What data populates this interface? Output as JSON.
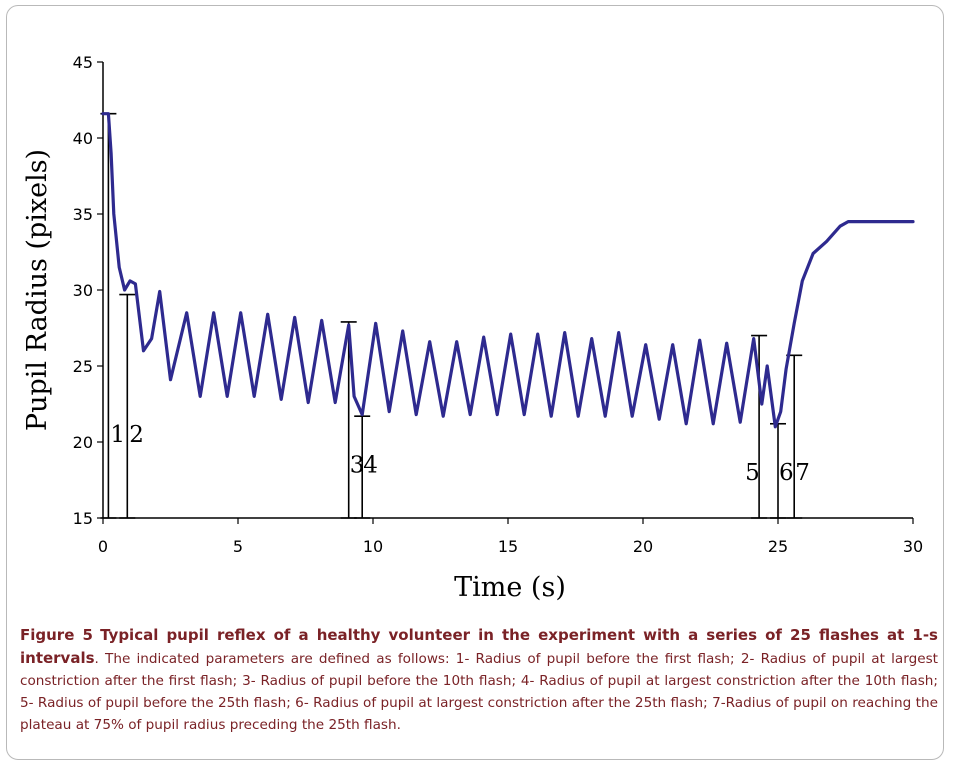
{
  "caption": {
    "figure_label": "Figure 5",
    "title": "Typical pupil reflex of a healthy volunteer in the experiment with a series of 25 flashes at 1-s intervals",
    "body": ". The indicated parameters are defined as follows: 1- Radius of pupil before the first flash; 2- Radius of pupil at largest constriction after the first flash; 3- Radius of pupil before the 10th flash; 4- Radius of pupil at largest constriction after the 10th flash; 5- Radius of pupil before the 25th flash; 6- Radius of pupil at largest constriction after the 25th flash; 7-Radius of pupil on reaching the plateau at 75% of pupil radius preceding the 25th flash."
  },
  "chart_data": {
    "type": "line",
    "xlabel": "Time (s)",
    "ylabel": "Pupil Radius (pixels)",
    "xlim": [
      0,
      30
    ],
    "ylim": [
      15,
      45
    ],
    "xticks": [
      0,
      5,
      10,
      15,
      20,
      25,
      30
    ],
    "yticks": [
      15,
      20,
      25,
      30,
      35,
      40,
      45
    ],
    "grid": false,
    "line_color": "#2e2a8f",
    "series": [
      {
        "x": [
          0.0,
          0.2,
          0.3,
          0.4,
          0.6,
          0.8,
          1.0,
          1.2,
          1.5,
          1.8,
          2.1,
          2.5,
          3.1,
          3.6,
          4.1,
          4.6,
          5.1,
          5.6,
          6.1,
          6.6,
          7.1,
          7.6,
          8.1,
          8.6,
          9.1,
          9.3,
          9.6,
          10.1,
          10.6,
          11.1,
          11.6,
          12.1,
          12.6,
          13.1,
          13.6,
          14.1,
          14.6,
          15.1,
          15.6,
          16.1,
          16.6,
          17.1,
          17.6,
          18.1,
          18.6,
          19.1,
          19.6,
          20.1,
          20.6,
          21.1,
          21.6,
          22.1,
          22.6,
          23.1,
          23.6,
          24.1,
          24.4,
          24.6,
          24.9,
          25.1,
          25.3,
          25.6,
          25.9,
          26.3,
          26.8,
          27.3,
          27.6,
          28.0,
          29.0,
          30.0
        ],
        "y": [
          41.6,
          41.6,
          39.0,
          35.0,
          31.5,
          30.0,
          30.6,
          30.4,
          26.0,
          26.8,
          29.9,
          24.1,
          28.5,
          23.0,
          28.5,
          23.0,
          28.5,
          23.0,
          28.4,
          22.8,
          28.2,
          22.6,
          28.0,
          22.6,
          27.7,
          23.0,
          21.8,
          27.8,
          22.0,
          27.3,
          21.8,
          26.6,
          21.7,
          26.6,
          21.8,
          26.9,
          21.8,
          27.1,
          21.8,
          27.1,
          21.7,
          27.2,
          21.7,
          26.8,
          21.7,
          27.2,
          21.7,
          26.4,
          21.5,
          26.4,
          21.2,
          26.7,
          21.2,
          26.5,
          21.3,
          26.8,
          22.5,
          25.0,
          21.0,
          22.0,
          24.8,
          27.8,
          30.6,
          32.4,
          33.2,
          34.2,
          34.5,
          34.5,
          34.5,
          34.5
        ]
      }
    ],
    "markers": [
      {
        "label": "1",
        "x": 0.2,
        "y_top": 41.6
      },
      {
        "label": "2",
        "x": 0.9,
        "y_top": 29.7
      },
      {
        "label": "3",
        "x": 9.1,
        "y_top": 27.9
      },
      {
        "label": "4",
        "x": 9.6,
        "y_top": 21.7
      },
      {
        "label": "5",
        "x": 24.3,
        "y_top": 27.0
      },
      {
        "label": "6",
        "x": 25.0,
        "y_top": 21.2
      },
      {
        "label": "7",
        "x": 25.6,
        "y_top": 25.7
      }
    ]
  }
}
